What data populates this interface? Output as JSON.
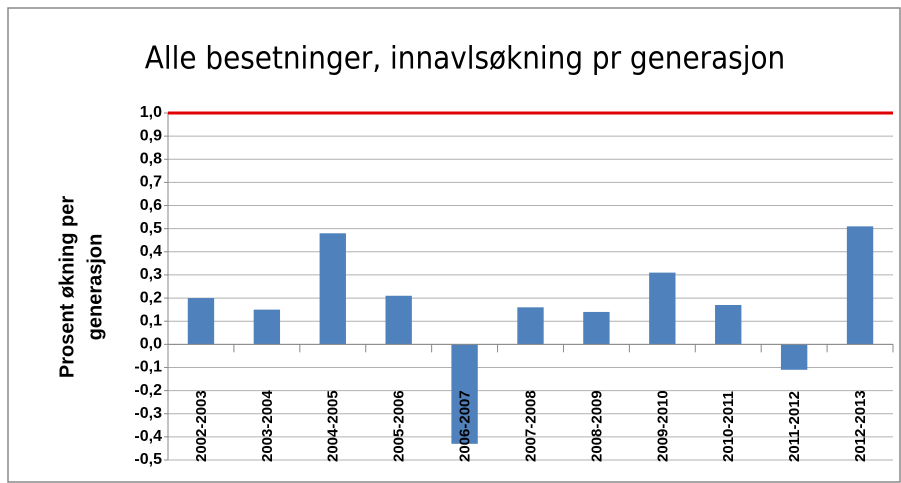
{
  "chart_data": {
    "type": "bar",
    "title": "Alle besetninger, innavlsøkning pr generasjon",
    "ylabel": [
      "Prosent økning per",
      "generasjon"
    ],
    "categories": [
      "2002-2003",
      "2003-2004",
      "2004-2005",
      "2005-2006",
      "2006-2007",
      "2007-2008",
      "2008-2009",
      "2009-2010",
      "2010-2011",
      "2011-2012",
      "2012-2013"
    ],
    "values": [
      0.2,
      0.15,
      0.48,
      0.21,
      -0.43,
      0.16,
      0.14,
      0.31,
      0.17,
      -0.11,
      0.51
    ],
    "color": "#4f81bd",
    "ylim": [
      -0.5,
      1.0
    ],
    "yticks": [
      {
        "value": 1.0,
        "label": "1,0"
      },
      {
        "value": 0.9,
        "label": "0,9"
      },
      {
        "value": 0.8,
        "label": "0,8"
      },
      {
        "value": 0.7,
        "label": "0,7"
      },
      {
        "value": 0.6,
        "label": "0,6"
      },
      {
        "value": 0.5,
        "label": "0,5"
      },
      {
        "value": 0.4,
        "label": "0,4"
      },
      {
        "value": 0.3,
        "label": "0,3"
      },
      {
        "value": 0.2,
        "label": "0,2"
      },
      {
        "value": 0.1,
        "label": "0,1"
      },
      {
        "value": 0.0,
        "label": "0,0"
      },
      {
        "value": -0.1,
        "label": "-0,1"
      },
      {
        "value": -0.2,
        "label": "-0,2"
      },
      {
        "value": -0.3,
        "label": "-0,3"
      },
      {
        "value": -0.4,
        "label": "-0,4"
      },
      {
        "value": -0.5,
        "label": "-0,5"
      }
    ],
    "grid": true,
    "reference_line": {
      "value": 1.0,
      "color": "#e00000"
    }
  }
}
